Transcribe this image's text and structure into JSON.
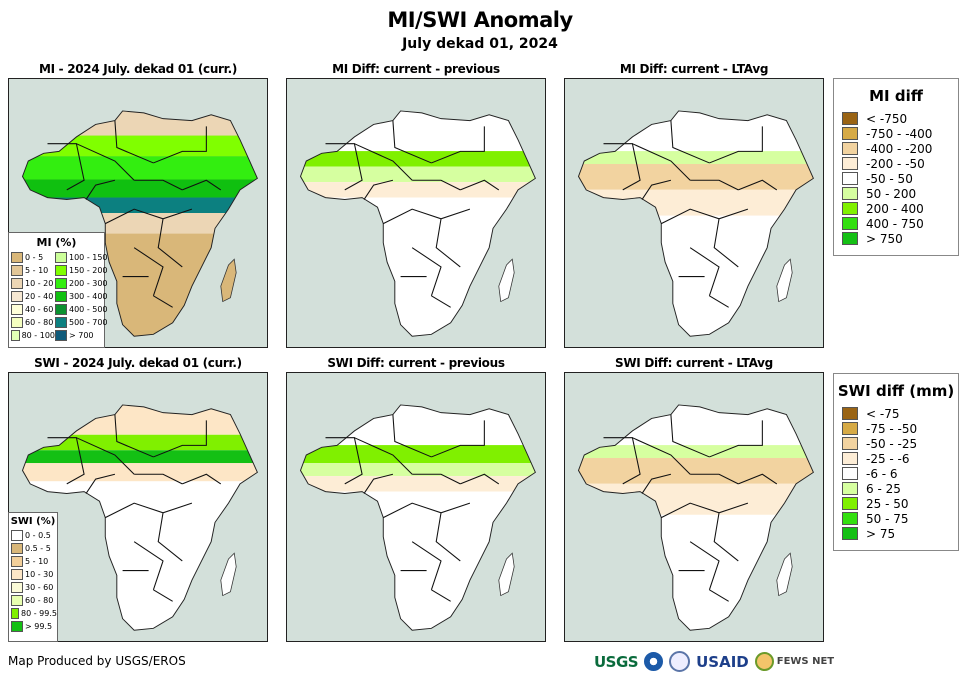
{
  "header": {
    "title": "MI/SWI Anomaly",
    "subtitle": "July dekad 01, 2024"
  },
  "panels": [
    {
      "title": "MI - 2024 July. dekad 01 (curr.)",
      "variable": "MI",
      "kind": "current"
    },
    {
      "title": "MI Diff: current - previous",
      "variable": "MI",
      "kind": "diff-previous"
    },
    {
      "title": "MI Diff: current - LTAvg",
      "variable": "MI",
      "kind": "diff-ltavg"
    },
    {
      "title": "SWI - 2024 July. dekad 01 (curr.)",
      "variable": "SWI",
      "kind": "current"
    },
    {
      "title": "SWI Diff: current - previous",
      "variable": "SWI",
      "kind": "diff-previous"
    },
    {
      "title": "SWI Diff: current - LTAvg",
      "variable": "SWI",
      "kind": "diff-ltavg"
    }
  ],
  "legends": {
    "mi_percent": {
      "title": "MI (%)",
      "items": [
        {
          "label": "0 - 5",
          "color": "#d9b779"
        },
        {
          "label": "5 - 10",
          "color": "#e2c697"
        },
        {
          "label": "10 - 20",
          "color": "#ecd6b5"
        },
        {
          "label": "20 - 40",
          "color": "#f7e8d2"
        },
        {
          "label": "40 - 60",
          "color": "#ffffd9"
        },
        {
          "label": "60 - 80",
          "color": "#f5ffc0"
        },
        {
          "label": "80 - 100",
          "color": "#e2ffb6"
        },
        {
          "label": "100 - 150",
          "color": "#ccff99"
        },
        {
          "label": "150 - 200",
          "color": "#80ff00"
        },
        {
          "label": "200 - 300",
          "color": "#33ee10"
        },
        {
          "label": "300 - 400",
          "color": "#10c010"
        },
        {
          "label": "400 - 500",
          "color": "#0b9230"
        },
        {
          "label": "500 - 700",
          "color": "#0c8080"
        },
        {
          "label": "> 700",
          "color": "#0f5a7a"
        }
      ]
    },
    "swi_percent": {
      "title": "SWI (%)",
      "items": [
        {
          "label": "0 - 0.5",
          "color": "#ffffff"
        },
        {
          "label": "0.5 - 5",
          "color": "#d9b779"
        },
        {
          "label": "5 - 10",
          "color": "#f2cf9a"
        },
        {
          "label": "10 - 30",
          "color": "#fde6c6"
        },
        {
          "label": "30 - 60",
          "color": "#fbfbd8"
        },
        {
          "label": "60 - 80",
          "color": "#e8ffb0"
        },
        {
          "label": "80 - 99.5",
          "color": "#80f000"
        },
        {
          "label": "> 99.5",
          "color": "#14c014"
        }
      ]
    },
    "mi_diff": {
      "title": "MI diff",
      "items": [
        {
          "label": "< -750",
          "color": "#9a6414"
        },
        {
          "label": "-750 - -400",
          "color": "#d6aa46"
        },
        {
          "label": "-400 - -200",
          "color": "#f2d3a0"
        },
        {
          "label": "-200 - -50",
          "color": "#fdedd6"
        },
        {
          "label": "-50 - 50",
          "color": "#ffffff"
        },
        {
          "label": "50 - 200",
          "color": "#d6ffa0"
        },
        {
          "label": "200 - 400",
          "color": "#80f000"
        },
        {
          "label": "400 - 750",
          "color": "#33e010"
        },
        {
          "label": "> 750",
          "color": "#14c014"
        }
      ]
    },
    "swi_diff": {
      "title": "SWI diff (mm)",
      "items": [
        {
          "label": "< -75",
          "color": "#9a6414"
        },
        {
          "label": "-75 - -50",
          "color": "#d6aa46"
        },
        {
          "label": "-50 - -25",
          "color": "#f2d3a0"
        },
        {
          "label": "-25 - -6",
          "color": "#fdedd6"
        },
        {
          "label": "-6 - 6",
          "color": "#ffffff"
        },
        {
          "label": "6 - 25",
          "color": "#d6ffa0"
        },
        {
          "label": "25 - 50",
          "color": "#80f000"
        },
        {
          "label": "50 - 75",
          "color": "#33e010"
        },
        {
          "label": "> 75",
          "color": "#14c014"
        }
      ]
    }
  },
  "map_colors": {
    "ocean": "#d3e0da",
    "border": "#111111"
  },
  "footer": {
    "credit": "Map Produced by USGS/EROS",
    "logos": [
      "USGS",
      "NOAA",
      "USAID seal",
      "USAID",
      "FEWS NET"
    ]
  }
}
